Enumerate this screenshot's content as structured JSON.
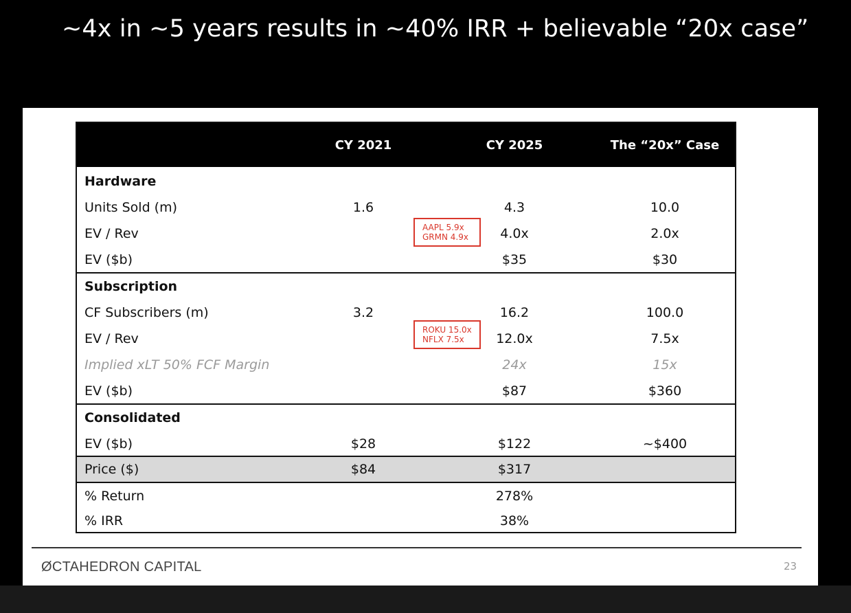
{
  "title": "~4x in ~5 years results in ~40% IRR + believable “20x case”",
  "table": {
    "columns": [
      "CY 2021",
      "CY 2025",
      "The “20x” Case"
    ],
    "hardware": {
      "header": "Hardware",
      "units": {
        "label": "Units Sold (m)",
        "values": [
          "1.6",
          "4.3",
          "10.0"
        ]
      },
      "ev_rev": {
        "label": "EV / Rev",
        "values": [
          "",
          "4.0x",
          "2.0x"
        ]
      },
      "ev": {
        "label": "EV ($b)",
        "values": [
          "",
          "$35",
          "$30"
        ]
      },
      "callout": [
        "AAPL 5.9x",
        "GRMN 4.9x"
      ]
    },
    "subscription": {
      "header": "Subscription",
      "subs": {
        "label": "CF Subscribers (m)",
        "values": [
          "3.2",
          "16.2",
          "100.0"
        ]
      },
      "ev_rev": {
        "label": "EV / Rev",
        "values": [
          "",
          "12.0x",
          "7.5x"
        ]
      },
      "implied": {
        "label": "Implied xLT 50% FCF Margin",
        "values": [
          "",
          "24x",
          "15x"
        ]
      },
      "ev": {
        "label": "EV ($b)",
        "values": [
          "",
          "$87",
          "$360"
        ]
      },
      "callout": [
        "ROKU 15.0x",
        "NFLX 7.5x"
      ]
    },
    "consolidated": {
      "header": "Consolidated",
      "ev": {
        "label": "EV ($b)",
        "values": [
          "$28",
          "$122",
          "~$400"
        ]
      }
    },
    "price": {
      "label": "Price ($)",
      "values": [
        "$84",
        "$317",
        ""
      ]
    },
    "ret": {
      "label": "% Return",
      "values": [
        "",
        "278%",
        ""
      ]
    },
    "irr": {
      "label": "% IRR",
      "values": [
        "",
        "38%",
        ""
      ]
    }
  },
  "footer": {
    "logo": "ØCTAHEDRON CAPITAL",
    "page": "23"
  }
}
